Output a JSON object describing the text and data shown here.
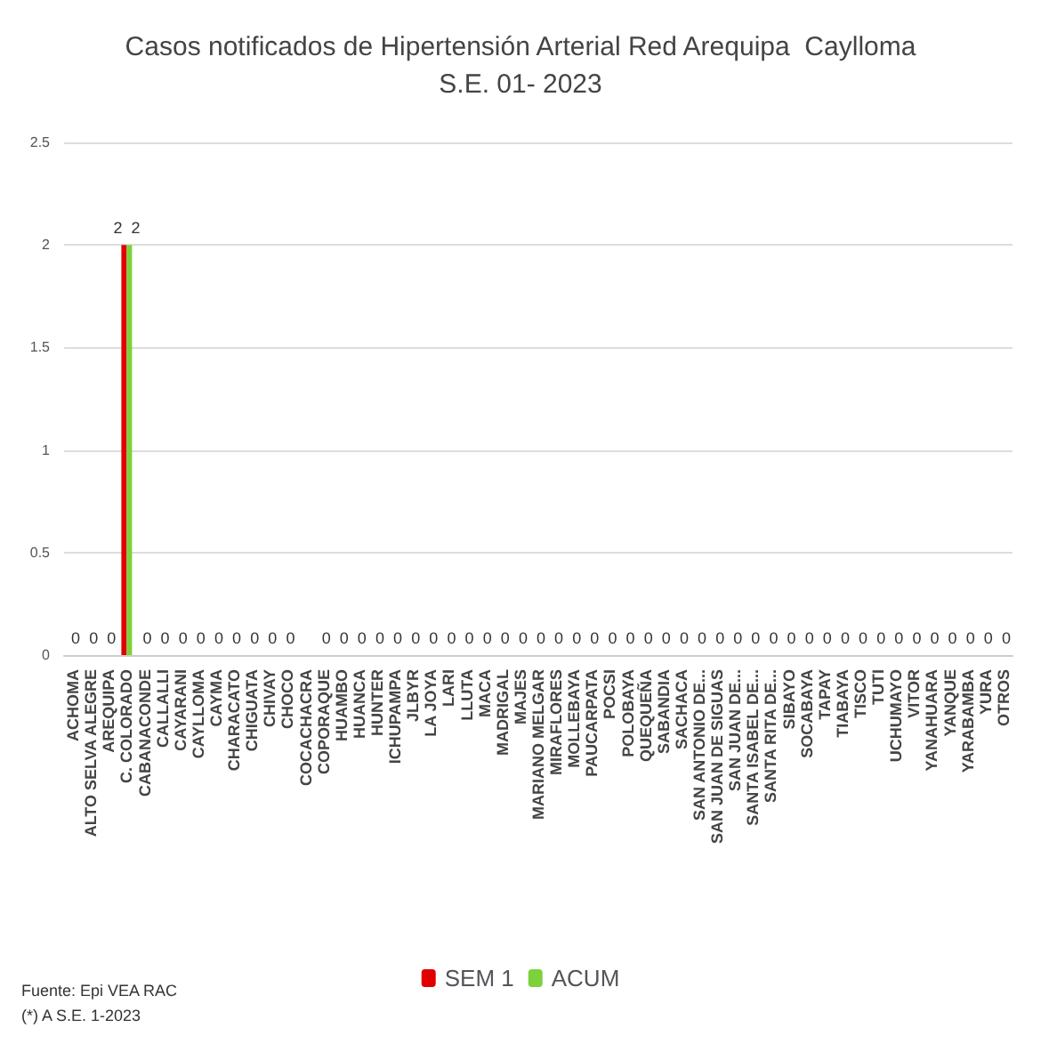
{
  "chart_data": {
    "type": "bar",
    "title": "Casos notificados de Hipertensión Arterial Red Arequipa  Caylloma",
    "subtitle": "S.E. 01- 2023",
    "categories": [
      "ACHOMA",
      "ALTO SELVA ALEGRE",
      "AREQUIPA",
      "C. COLORADO",
      "CABANACONDE",
      "CALLALLI",
      "CAYARANI",
      "CAYLLOMA",
      "CAYMA",
      "CHARACATO",
      "CHIGUATA",
      "CHIVAY",
      "CHOCO",
      "COCACHACRA",
      "COPORAQUE",
      "HUAMBO",
      "HUANCA",
      "HUNTER",
      "ICHUPAMPA",
      "JLBYR",
      "LA JOYA",
      "LARI",
      "LLUTA",
      "MACA",
      "MADRIGAL",
      "MAJES",
      "MARIANO MELGAR",
      "MIRAFLORES",
      "MOLLEBAYA",
      "PAUCARPATA",
      "POCSI",
      "POLOBAYA",
      "QUEQUEÑA",
      "SABANDIA",
      "SACHACA",
      "SAN ANTONIO DE...",
      "SAN JUAN DE SIGUAS",
      "SAN JUAN DE...",
      "SANTA ISABEL DE...",
      "SANTA RITA DE...",
      "SIBAYO",
      "SOCABAYA",
      "TAPAY",
      "TIABAYA",
      "TISCO",
      "TUTI",
      "UCHUMAYO",
      "VITOR",
      "YANAHUARA",
      "YANQUE",
      "YARABAMBA",
      "YURA",
      "OTROS"
    ],
    "series": [
      {
        "name": "SEM 1",
        "color": "#e00000",
        "values": [
          0,
          0,
          0,
          2,
          0,
          0,
          0,
          0,
          0,
          0,
          0,
          0,
          0,
          null,
          0,
          0,
          0,
          0,
          0,
          0,
          0,
          0,
          0,
          0,
          0,
          0,
          0,
          0,
          0,
          0,
          0,
          0,
          0,
          0,
          0,
          0,
          0,
          0,
          0,
          0,
          0,
          0,
          0,
          0,
          0,
          0,
          0,
          0,
          0,
          0,
          0,
          0,
          0
        ],
        "value_labels": [
          null,
          null,
          null,
          "2",
          null,
          null,
          null,
          null,
          null,
          null,
          null,
          null,
          null,
          null,
          null,
          null,
          null,
          null,
          null,
          null,
          null,
          null,
          null,
          null,
          null,
          null,
          null,
          null,
          null,
          null,
          null,
          null,
          null,
          null,
          null,
          null,
          null,
          null,
          null,
          null,
          null,
          null,
          null,
          null,
          null,
          null,
          null,
          null,
          null,
          null,
          null,
          null,
          null
        ]
      },
      {
        "name": "ACUM",
        "color": "#7dd13a",
        "values": [
          0,
          0,
          0,
          2,
          0,
          0,
          0,
          0,
          0,
          0,
          0,
          0,
          0,
          null,
          0,
          0,
          0,
          0,
          0,
          0,
          0,
          0,
          0,
          0,
          0,
          0,
          0,
          0,
          0,
          0,
          0,
          0,
          0,
          0,
          0,
          0,
          0,
          0,
          0,
          0,
          0,
          0,
          0,
          0,
          0,
          0,
          0,
          0,
          0,
          0,
          0,
          0,
          0
        ],
        "value_labels": [
          "0",
          "0",
          "0",
          "2",
          "0",
          "0",
          "0",
          "0",
          "0",
          "0",
          "0",
          "0",
          "0",
          null,
          "0",
          "0",
          "0",
          "0",
          "0",
          "0",
          "0",
          "0",
          "0",
          "0",
          "0",
          "0",
          "0",
          "0",
          "0",
          "0",
          "0",
          "0",
          "0",
          "0",
          "0",
          "0",
          "0",
          "0",
          "0",
          "0",
          "0",
          "0",
          "0",
          "0",
          "0",
          "0",
          "0",
          "0",
          "0",
          "0",
          "0",
          "0",
          "0"
        ]
      }
    ],
    "ylim": [
      0,
      2.5
    ],
    "yticks": [
      0,
      0.5,
      1,
      1.5,
      2,
      2.5
    ],
    "grid": "y",
    "legend": "bottom",
    "annotations": [
      "Fuente: Epi VEA RAC",
      "(*) A S.E. 1-2023"
    ]
  }
}
